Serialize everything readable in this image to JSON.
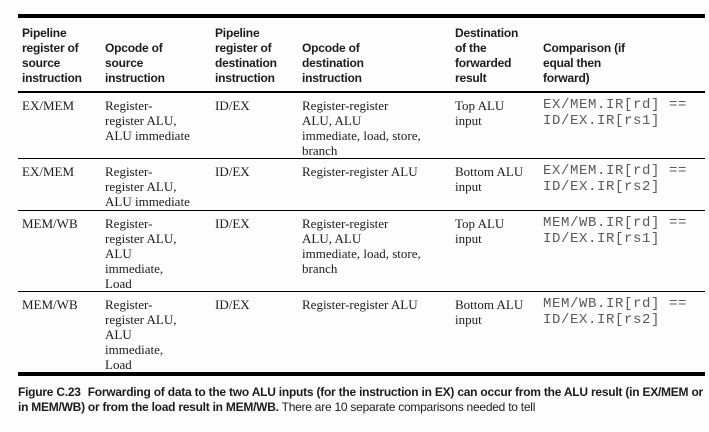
{
  "figure": {
    "columns": [
      "Pipeline\nregister of\nsource\ninstruction",
      "Opcode of\nsource\ninstruction",
      "Pipeline\nregister of\ndestination\ninstruction",
      "Opcode of\ndestination\ninstruction",
      "Destination\nof the\nforwarded\nresult",
      "Comparison (if\nequal then\nforward)"
    ],
    "rows": [
      {
        "source_register": "EX/MEM",
        "source_opcode": "Register-\nregister ALU,\nALU immediate",
        "dest_register": "ID/EX",
        "dest_opcode": "Register-register\nALU, ALU\nimmediate, load, store,\nbranch",
        "forward_destination": "Top ALU\ninput",
        "comparison": "EX/MEM.IR[rd] ==\nID/EX.IR[rs1]"
      },
      {
        "source_register": "EX/MEM",
        "source_opcode": "Register-\nregister ALU,\nALU immediate",
        "dest_register": "ID/EX",
        "dest_opcode": "Register-register ALU",
        "forward_destination": "Bottom ALU\ninput",
        "comparison": "EX/MEM.IR[rd] ==\nID/EX.IR[rs2]"
      },
      {
        "source_register": "MEM/WB",
        "source_opcode": "Register-\nregister ALU,\nALU\nimmediate,\nLoad",
        "dest_register": "ID/EX",
        "dest_opcode": "Register-register\nALU, ALU\nimmediate, load, store,\nbranch",
        "forward_destination": "Top ALU\ninput",
        "comparison": "MEM/WB.IR[rd] ==\nID/EX.IR[rs1]"
      },
      {
        "source_register": "MEM/WB",
        "source_opcode": "Register-\nregister ALU,\nALU\nimmediate,\nLoad",
        "dest_register": "ID/EX",
        "dest_opcode": "Register-register ALU",
        "forward_destination": "Bottom ALU\ninput",
        "comparison": "MEM/WB.IR[rd] ==\nID/EX.IR[rs2]"
      }
    ],
    "caption": {
      "label": "Figure C.23",
      "bold": "Forwarding of data to the two ALU inputs (for the instruction in EX) can occur from the ALU result (in EX/MEM or in MEM/WB) or from the load result in MEM/WB.",
      "regular": "There are 10 separate comparisons needed to tell"
    },
    "colors": {
      "text": "#1c1c1c",
      "code_text": "#5a5a5a",
      "rule": "#000000",
      "background": "#fdfdfd"
    }
  }
}
